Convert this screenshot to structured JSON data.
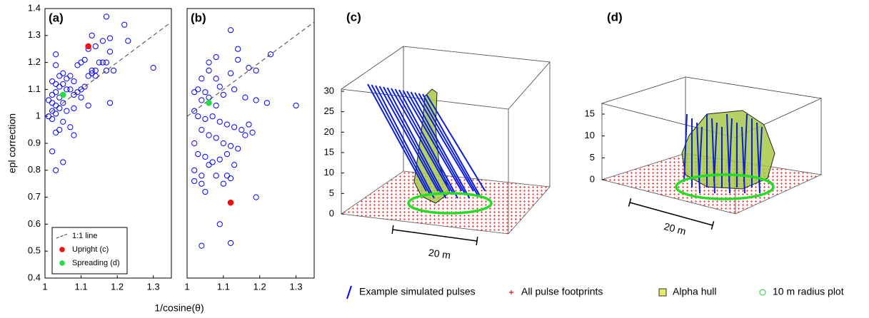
{
  "chart_data": [
    {
      "type": "scatter",
      "label": "(a)",
      "ylabel": "epl correction",
      "xlabel": "1/cosine(θ)",
      "xlim": [
        1,
        1.35
      ],
      "ylim": [
        0.4,
        1.4
      ],
      "xticks": [
        1,
        1.1,
        1.2,
        1.3
      ],
      "yticks": [
        0.4,
        0.5,
        0.6,
        0.7,
        0.8,
        0.9,
        1,
        1.1,
        1.2,
        1.3,
        1.4
      ],
      "legend": "lower left",
      "series": [
        {
          "name": "1:1 line",
          "color": "#444444",
          "style": "dashed",
          "x": [
            1,
            1.35
          ],
          "values": [
            1,
            1.35
          ]
        },
        {
          "color": "#0000ff",
          "filled": false,
          "x": [
            1.17,
            1.22,
            1.18,
            1.16,
            1.23,
            1.13,
            1.12,
            1.14,
            1.3,
            1.18,
            1.17,
            1.19,
            1.17,
            1.15,
            1.16,
            1.03,
            1.03,
            1.1,
            1.11,
            1.09,
            1.13,
            1.14,
            1.12,
            1.13,
            1.14,
            1.08,
            1.06,
            1.07,
            1.05,
            1.04,
            1.02,
            1.03,
            1.04,
            1.05,
            1.06,
            1.07,
            1.08,
            1.09,
            1.1,
            1.11,
            1.03,
            1.02,
            1.04,
            1.05,
            1.02,
            1.01,
            1.03,
            1.04,
            1.02,
            1.03,
            1.01,
            1.02,
            1.06,
            1.08,
            1.07,
            1.03,
            1.04,
            1.02,
            1.03,
            1.05,
            1.08,
            1.18,
            1.12,
            1.1,
            1.05
          ],
          "values": [
            1.37,
            1.34,
            1.29,
            1.28,
            1.28,
            1.3,
            1.25,
            1.26,
            1.18,
            1.24,
            1.2,
            1.17,
            1.17,
            1.2,
            1.2,
            1.23,
            1.19,
            1.2,
            1.21,
            1.19,
            1.16,
            1.15,
            1.15,
            1.17,
            1.17,
            1.13,
            1.14,
            1.15,
            1.16,
            1.15,
            1.13,
            1.12,
            1.11,
            1.12,
            1.1,
            1.1,
            1.08,
            1.09,
            1.1,
            1.11,
            1.09,
            1.08,
            1.07,
            1.05,
            1.05,
            1.06,
            1.04,
            1.03,
            1.02,
            1.01,
            1,
            0.99,
            1.02,
            1.03,
            0.96,
            0.94,
            0.95,
            0.87,
            0.8,
            0.83,
            0.93,
            1.05,
            1.04,
            1.07,
            0.98
          ]
        },
        {
          "name": "Upright (c)",
          "color": "#ee1111",
          "filled": true,
          "x": [
            1.12
          ],
          "values": [
            1.26
          ]
        },
        {
          "name": "Spreading (d)",
          "color": "#22dd44",
          "filled": true,
          "x": [
            1.05
          ],
          "values": [
            1.08
          ]
        }
      ]
    },
    {
      "type": "scatter",
      "label": "(b)",
      "xlim": [
        1,
        1.35
      ],
      "ylim": [
        0.4,
        1.4
      ],
      "xticks": [
        1,
        1.1,
        1.2,
        1.3
      ],
      "series": [
        {
          "color": "#444444",
          "style": "dashed",
          "x": [
            1,
            1.35
          ],
          "values": [
            1,
            1.35
          ]
        },
        {
          "color": "#0000ff",
          "filled": false,
          "x": [
            1.12,
            1.08,
            1.14,
            1.23,
            1.14,
            1.06,
            1.17,
            1.19,
            1.06,
            1.04,
            1.08,
            1.12,
            1.03,
            1.05,
            1.09,
            1.1,
            1.02,
            1.04,
            1.06,
            1.08,
            1.13,
            1.16,
            1.19,
            1.22,
            1.3,
            1.02,
            1.03,
            1.05,
            1.07,
            1.09,
            1.11,
            1.13,
            1.15,
            1.17,
            1.04,
            1.06,
            1.08,
            1.1,
            1.12,
            1.14,
            1.16,
            1.18,
            1.02,
            1.03,
            1.05,
            1.07,
            1.09,
            1.11,
            1.13,
            1.02,
            1.04,
            1.06,
            1.08,
            1.1,
            1.12,
            1.04,
            1.05,
            1.02,
            1.19,
            1.09,
            1.04,
            1.12,
            1.11
          ],
          "values": [
            1.32,
            1.22,
            1.25,
            1.23,
            1.21,
            1.2,
            1.18,
            1.17,
            1.17,
            1.14,
            1.14,
            1.16,
            1.1,
            1.09,
            1.11,
            1.08,
            1.09,
            1.06,
            1.07,
            1.04,
            1.1,
            1.07,
            1.06,
            1.05,
            1.04,
            1.02,
            1,
            0.99,
            1,
            0.98,
            0.97,
            0.96,
            0.95,
            0.97,
            0.95,
            0.93,
            0.92,
            0.9,
            0.89,
            0.88,
            0.93,
            0.94,
            0.9,
            0.86,
            0.85,
            0.83,
            0.84,
            0.86,
            0.82,
            0.8,
            0.78,
            0.82,
            0.78,
            0.75,
            0.77,
            0.75,
            0.72,
            0.76,
            0.7,
            0.6,
            0.52,
            0.53,
            0.78
          ]
        },
        {
          "color": "#ee1111",
          "filled": true,
          "x": [
            1.12
          ],
          "values": [
            0.68
          ]
        },
        {
          "color": "#22dd44",
          "filled": true,
          "x": [
            1.06
          ],
          "values": [
            1.05
          ]
        }
      ]
    },
    {
      "type": "scene3d",
      "label": "(c)",
      "zlim": [
        0,
        30
      ],
      "zticks": [
        0,
        5,
        10,
        15,
        20,
        25,
        30
      ],
      "scale_label": "20 m"
    },
    {
      "type": "scene3d",
      "label": "(d)",
      "zlim": [
        0,
        15
      ],
      "zticks": [
        0,
        5,
        10,
        15
      ],
      "scale_label": "20 m"
    }
  ],
  "legend": [
    {
      "name": "Example simulated pulses",
      "color": "#0000ff",
      "marker": "line"
    },
    {
      "name": "All pulse footprints",
      "color": "#ee1111",
      "marker": "plus"
    },
    {
      "name": "Alpha hull",
      "color": "#e8e870",
      "marker": "square"
    },
    {
      "name": "10 m radius plot",
      "color": "#22cc22",
      "marker": "circle"
    }
  ]
}
